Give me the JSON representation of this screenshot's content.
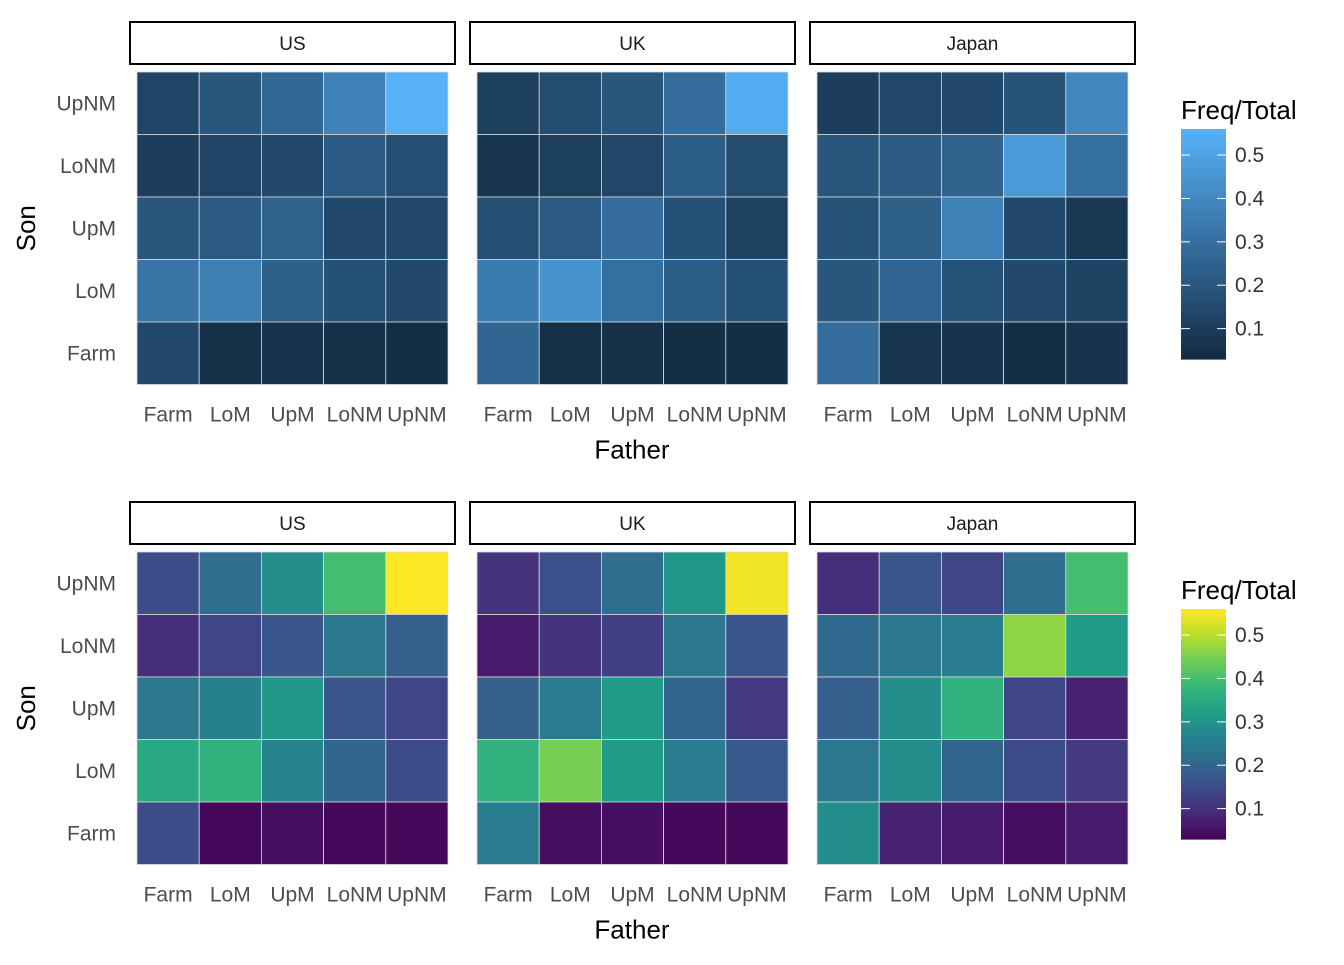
{
  "chart_data": [
    {
      "type": "heatmap",
      "palette": "blues",
      "gradient_colors": [
        "#132B43",
        "#56B1F7"
      ],
      "facets": [
        "US",
        "UK",
        "Japan"
      ],
      "x_categories": [
        "Farm",
        "LoM",
        "UpM",
        "LoNM",
        "UpNM"
      ],
      "y_categories": [
        "Farm",
        "LoM",
        "UpM",
        "LoNM",
        "UpNM"
      ],
      "xlabel": "Father",
      "ylabel": "Son",
      "legend": {
        "title": "Freq/Total",
        "ticks": [
          "0.1",
          "0.2",
          "0.3",
          "0.4",
          "0.5"
        ],
        "placement": "right"
      },
      "value_range": [
        0.03,
        0.56
      ],
      "values": {
        "US": {
          "UpNM": [
            0.13,
            0.2,
            0.27,
            0.38,
            0.56
          ],
          "LoNM": [
            0.1,
            0.13,
            0.15,
            0.22,
            0.17
          ],
          "UpM": [
            0.2,
            0.22,
            0.25,
            0.15,
            0.14
          ],
          "LoM": [
            0.32,
            0.36,
            0.24,
            0.18,
            0.15
          ],
          "Farm": [
            0.15,
            0.05,
            0.06,
            0.05,
            0.04
          ]
        },
        "UK": {
          "UpNM": [
            0.11,
            0.16,
            0.2,
            0.29,
            0.54
          ],
          "LoNM": [
            0.07,
            0.11,
            0.14,
            0.23,
            0.16
          ],
          "UpM": [
            0.17,
            0.22,
            0.29,
            0.18,
            0.12
          ],
          "LoM": [
            0.35,
            0.44,
            0.3,
            0.23,
            0.18
          ],
          "Farm": [
            0.26,
            0.05,
            0.05,
            0.04,
            0.04
          ]
        },
        "Japan": {
          "UpNM": [
            0.1,
            0.14,
            0.15,
            0.19,
            0.39
          ],
          "LoNM": [
            0.2,
            0.22,
            0.25,
            0.47,
            0.3
          ],
          "UpM": [
            0.19,
            0.24,
            0.37,
            0.15,
            0.08
          ],
          "LoM": [
            0.2,
            0.26,
            0.19,
            0.15,
            0.12
          ],
          "Farm": [
            0.29,
            0.07,
            0.06,
            0.04,
            0.06
          ]
        }
      }
    },
    {
      "type": "heatmap",
      "palette": "viridis",
      "gradient_colors": [
        "#440154",
        "#482878",
        "#3E4A89",
        "#31688E",
        "#26828E",
        "#1F9E89",
        "#35B779",
        "#6DCD59",
        "#B4DE2C",
        "#FDE725"
      ],
      "facets": [
        "US",
        "UK",
        "Japan"
      ],
      "x_categories": [
        "Farm",
        "LoM",
        "UpM",
        "LoNM",
        "UpNM"
      ],
      "y_categories": [
        "Farm",
        "LoM",
        "UpM",
        "LoNM",
        "UpNM"
      ],
      "xlabel": "Father",
      "ylabel": "Son",
      "legend": {
        "title": "Freq/Total",
        "ticks": [
          "0.1",
          "0.2",
          "0.3",
          "0.4",
          "0.5"
        ],
        "placement": "right"
      },
      "value_range": [
        0.03,
        0.56
      ],
      "values": {
        "US": {
          "UpNM": [
            0.15,
            0.22,
            0.29,
            0.4,
            0.56
          ],
          "LoNM": [
            0.1,
            0.14,
            0.17,
            0.24,
            0.19
          ],
          "UpM": [
            0.24,
            0.26,
            0.31,
            0.17,
            0.14
          ],
          "LoM": [
            0.35,
            0.37,
            0.27,
            0.2,
            0.15
          ],
          "Farm": [
            0.15,
            0.04,
            0.05,
            0.04,
            0.04
          ]
        },
        "UK": {
          "UpNM": [
            0.11,
            0.16,
            0.22,
            0.31,
            0.55
          ],
          "LoNM": [
            0.07,
            0.11,
            0.13,
            0.24,
            0.17
          ],
          "UpM": [
            0.19,
            0.25,
            0.32,
            0.2,
            0.12
          ],
          "LoM": [
            0.37,
            0.45,
            0.32,
            0.25,
            0.18
          ],
          "Farm": [
            0.25,
            0.05,
            0.05,
            0.04,
            0.04
          ]
        },
        "Japan": {
          "UpNM": [
            0.1,
            0.17,
            0.14,
            0.22,
            0.4
          ],
          "LoNM": [
            0.21,
            0.24,
            0.25,
            0.47,
            0.32
          ],
          "UpM": [
            0.19,
            0.29,
            0.37,
            0.14,
            0.08
          ],
          "LoM": [
            0.24,
            0.29,
            0.2,
            0.15,
            0.12
          ],
          "Farm": [
            0.29,
            0.08,
            0.07,
            0.05,
            0.07
          ]
        }
      }
    }
  ]
}
